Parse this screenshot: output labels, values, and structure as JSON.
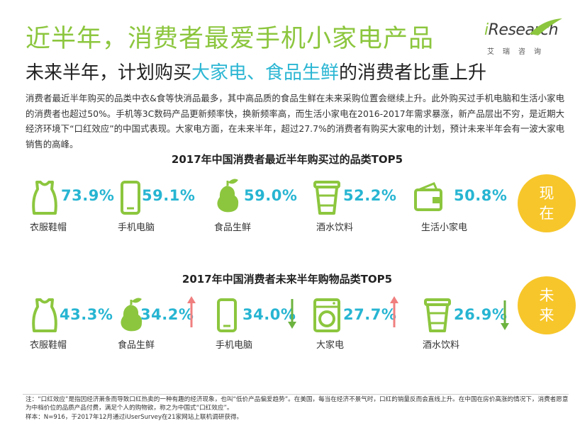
{
  "header": {
    "title": "近半年，消费者最爱手机小家电产品",
    "subtitle_pre": "未来半年，计划购买",
    "subtitle_hl": "大家电、食品生鲜",
    "subtitle_post": "的消费者比重上升"
  },
  "logo": {
    "brand_i": "i",
    "brand_rest": "Research",
    "cn": "艾瑞咨询"
  },
  "intro": "消费者最近半年购买的品类中衣&食等快消品最多，其中高品质的食品生鲜在未来采购位置会继续上升。此外购买过手机电脑和生活小家电的消费者也超过50%。手机等3C数码产品更新频率快，换新频率高，而生活小家电在2016-2017年需求暴涨，新产品层出不穷，是近期大经济环境下“口红效应”的中国式表现。大家电方面，在未来半年，超过27.7%的消费者有购买大家电的计划，预计未来半年会有一波大家电销售的高峰。",
  "section_now": {
    "title": "2017年中国消费者最近半年购买过的品类TOP5",
    "badge": [
      "现",
      "在"
    ],
    "items": [
      {
        "icon": "clothing-icon",
        "value": "73.9%",
        "label": "衣服鞋帽"
      },
      {
        "icon": "phone-icon",
        "value": "59.1%",
        "label": "手机电脑"
      },
      {
        "icon": "pear-icon",
        "value": "59.0%",
        "label": "食品生鲜"
      },
      {
        "icon": "cup-icon",
        "value": "52.2%",
        "label": "酒水饮料"
      },
      {
        "icon": "wallet-appliance-icon",
        "value": "50.8%",
        "label": "生活小家电"
      }
    ]
  },
  "section_future": {
    "title": "2017年中国消费者未来半年购物品类TOP5",
    "badge": [
      "未",
      "来"
    ],
    "items": [
      {
        "icon": "clothing-icon",
        "value": "43.3%",
        "label": "衣服鞋帽",
        "trend": "none"
      },
      {
        "icon": "pear-icon",
        "value": "34.2%",
        "label": "食品生鲜",
        "trend": "up"
      },
      {
        "icon": "phone-icon",
        "value": "34.0%",
        "label": "手机电脑",
        "trend": "down"
      },
      {
        "icon": "washing-machine-icon",
        "value": "27.7%",
        "label": "大家电",
        "trend": "up"
      },
      {
        "icon": "cup-icon",
        "value": "26.9%",
        "label": "酒水饮料",
        "trend": "down"
      }
    ]
  },
  "colors": {
    "green": "#8cc63e",
    "cyan": "#27b5d2",
    "yellow": "#f7c62a",
    "up_red": "#f07f7f",
    "down_green": "#6cb33f"
  },
  "footer": {
    "note": "注：“口红效应”是指因经济萧条而导致口红热卖的一种有趣的经济现象，也叫“低价产品偏爱趋势”。在美国，每当在经济不景气时，口红的销量反而会直线上升。在中国在房价高涨的情况下，消费者愿意为中档价位的品质产品付费，满足个人的购物欲，称之为中国式“口红效应”。",
    "sample": "样本：N=916，于2017年12月通过iUserSurvey在21家网站上联机调研获得。"
  }
}
